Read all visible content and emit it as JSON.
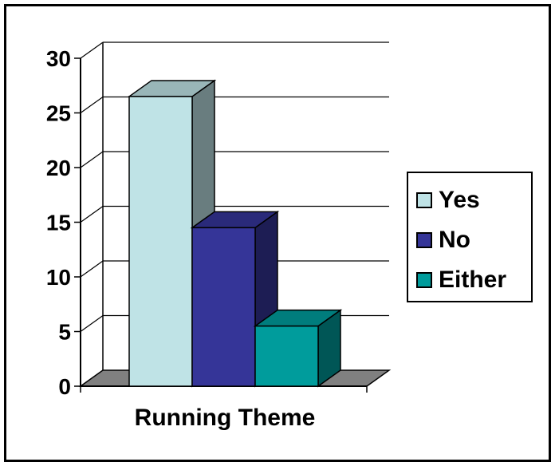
{
  "chart_data": {
    "type": "bar",
    "categories": [
      "Running Theme"
    ],
    "series": [
      {
        "name": "Yes",
        "values": [
          26.5
        ]
      },
      {
        "name": "No",
        "values": [
          14.5
        ]
      },
      {
        "name": "Either",
        "values": [
          5.5
        ]
      }
    ],
    "xlabel": "",
    "ylabel": "",
    "ylim": [
      0,
      30
    ],
    "yticks": [
      "0",
      "5",
      "10",
      "15",
      "20",
      "25",
      "30"
    ],
    "grid": true,
    "legend_position": "right",
    "colors": {
      "Yes": "#bfe3e6",
      "No": "#353598",
      "Either": "#009c9c",
      "floor": "#808080"
    }
  }
}
